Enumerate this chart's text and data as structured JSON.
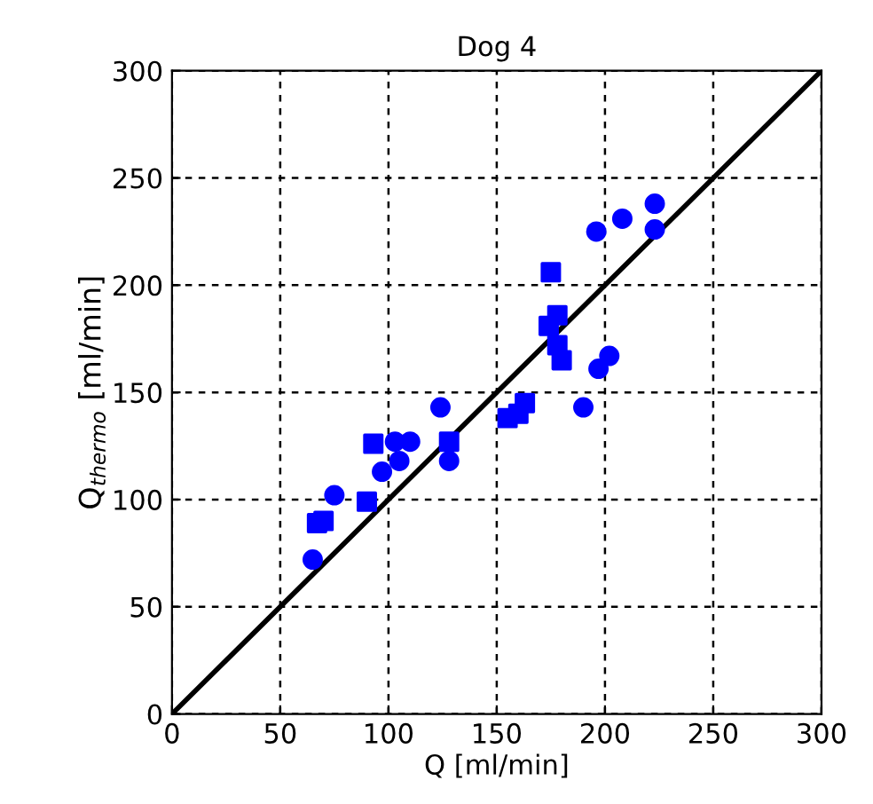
{
  "chart_data": {
    "type": "scatter",
    "title": "Dog 4",
    "xlabel": "Q [ml/min]",
    "ylabel": "Q$_{thermo}$ [ml/min]",
    "xlim": [
      0,
      300
    ],
    "ylim": [
      0,
      300
    ],
    "xticks": [
      0,
      50,
      100,
      150,
      200,
      250,
      300
    ],
    "yticks": [
      0,
      50,
      100,
      150,
      200,
      250,
      300
    ],
    "grid": true,
    "series": [
      {
        "type": "line",
        "color": "#000000",
        "x": [
          0,
          300
        ],
        "values": [
          0,
          300
        ],
        "marker": "none",
        "line_style": "solid"
      },
      {
        "color": "#0000ff",
        "marker": "circle",
        "x": [
          75,
          103,
          105,
          110,
          124,
          196,
          208,
          223,
          223
        ],
        "values": [
          102,
          127,
          118,
          127,
          143,
          225,
          231,
          238,
          226
        ]
      },
      {
        "color": "#0000ff",
        "marker": "circle",
        "x": [
          65,
          97,
          128,
          190,
          197,
          202
        ],
        "values": [
          72,
          113,
          118,
          143,
          161,
          167
        ]
      },
      {
        "color": "#0000ff",
        "marker": "square",
        "x": [
          67,
          90,
          128,
          155,
          160,
          163,
          178
        ],
        "values": [
          89,
          99,
          127,
          138,
          140,
          145,
          172
        ]
      },
      {
        "color": "#0000ff",
        "marker": "square",
        "x": [
          70,
          93,
          174,
          175,
          178,
          180
        ],
        "values": [
          90,
          126,
          181,
          206,
          186,
          165
        ]
      }
    ]
  }
}
